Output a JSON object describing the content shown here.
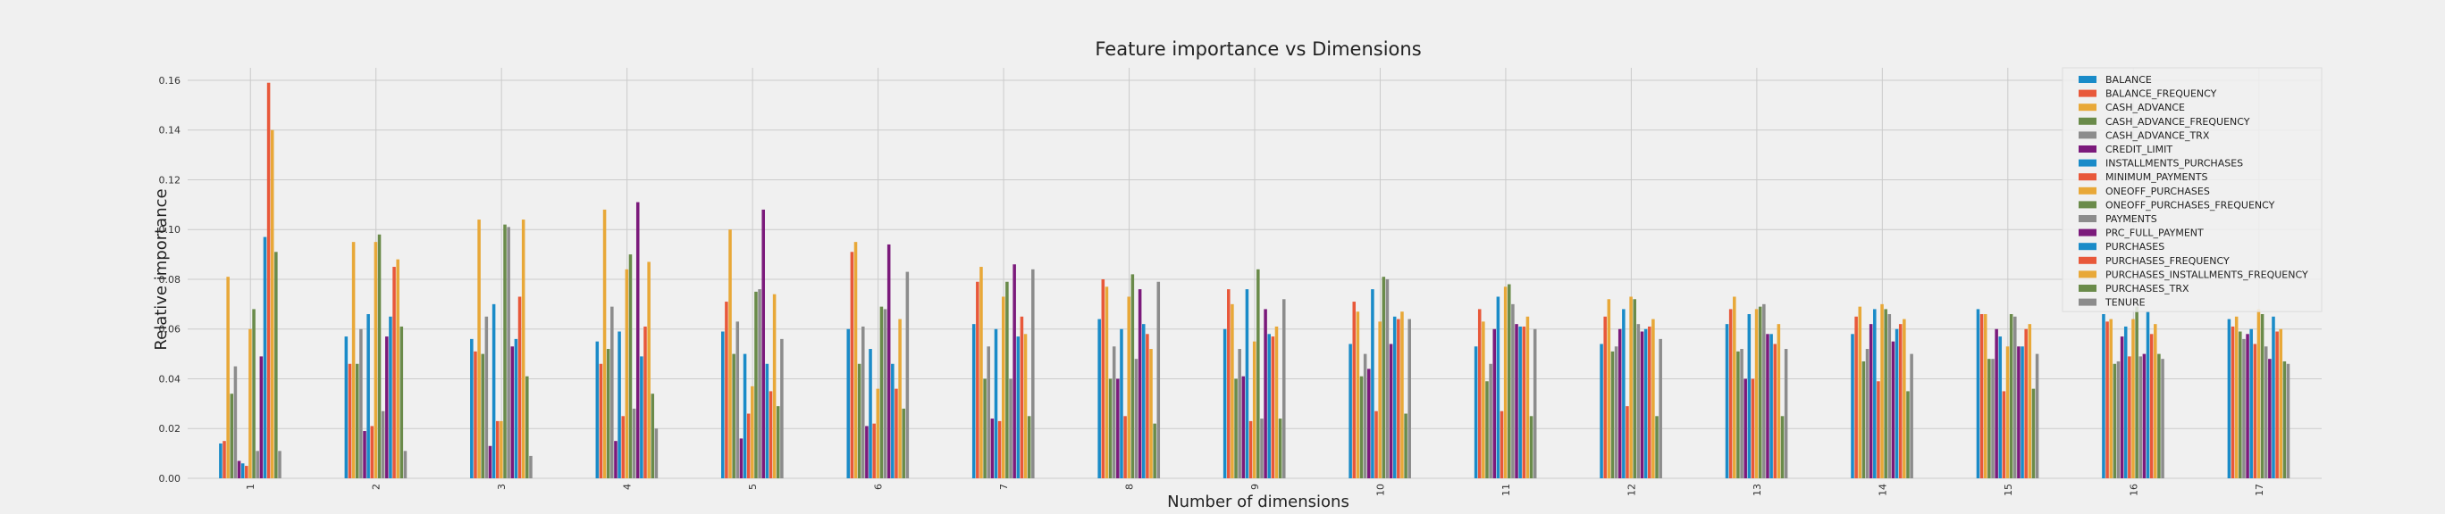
{
  "chart_data": {
    "type": "bar",
    "title": "Feature importance vs Dimensions",
    "xlabel": "Number of dimensions",
    "ylabel": "Relative importance",
    "ylim": [
      0,
      0.165
    ],
    "yticks": [
      "0.00",
      "0.02",
      "0.04",
      "0.06",
      "0.08",
      "0.10",
      "0.12",
      "0.14",
      "0.16"
    ],
    "grid": true,
    "legend_position": "top-right",
    "categories": [
      "1",
      "2",
      "3",
      "4",
      "5",
      "6",
      "7",
      "8",
      "9",
      "10",
      "11",
      "12",
      "13",
      "14",
      "15",
      "16",
      "17"
    ],
    "series": [
      {
        "name": "BALANCE",
        "color": "#1a8bc8",
        "values": [
          0.014,
          0.057,
          0.056,
          0.055,
          0.059,
          0.06,
          0.062,
          0.064,
          0.06,
          0.054,
          0.053,
          0.054,
          0.062,
          0.058,
          0.068,
          0.066,
          0.064
        ]
      },
      {
        "name": "BALANCE_FREQUENCY",
        "color": "#e8583a",
        "values": [
          0.015,
          0.046,
          0.051,
          0.046,
          0.071,
          0.091,
          0.079,
          0.08,
          0.076,
          0.071,
          0.068,
          0.065,
          0.068,
          0.065,
          0.066,
          0.063,
          0.061
        ]
      },
      {
        "name": "CASH_ADVANCE",
        "color": "#e8a838",
        "values": [
          0.081,
          0.095,
          0.104,
          0.108,
          0.1,
          0.095,
          0.085,
          0.077,
          0.07,
          0.067,
          0.063,
          0.072,
          0.073,
          0.069,
          0.066,
          0.064,
          0.065
        ]
      },
      {
        "name": "CASH_ADVANCE_FREQUENCY",
        "color": "#6a8b4a",
        "values": [
          0.034,
          0.046,
          0.05,
          0.052,
          0.05,
          0.046,
          0.04,
          0.04,
          0.04,
          0.041,
          0.039,
          0.051,
          0.051,
          0.047,
          0.048,
          0.046,
          0.059
        ]
      },
      {
        "name": "CASH_ADVANCE_TRX",
        "color": "#8c8c8c",
        "values": [
          0.045,
          0.06,
          0.065,
          0.069,
          0.063,
          0.061,
          0.053,
          0.053,
          0.052,
          0.05,
          0.046,
          0.053,
          0.052,
          0.052,
          0.048,
          0.047,
          0.056
        ]
      },
      {
        "name": "CREDIT_LIMIT",
        "color": "#7b1a7b",
        "values": [
          0.007,
          0.019,
          0.013,
          0.015,
          0.016,
          0.021,
          0.024,
          0.04,
          0.041,
          0.044,
          0.06,
          0.06,
          0.04,
          0.062,
          0.06,
          0.057,
          0.058
        ]
      },
      {
        "name": "INSTALLMENTS_PURCHASES",
        "color": "#1a8bc8",
        "values": [
          0.006,
          0.066,
          0.07,
          0.059,
          0.05,
          0.052,
          0.06,
          0.06,
          0.076,
          0.076,
          0.073,
          0.068,
          0.066,
          0.068,
          0.057,
          0.061,
          0.06
        ]
      },
      {
        "name": "MINIMUM_PAYMENTS",
        "color": "#e8583a",
        "values": [
          0.005,
          0.021,
          0.023,
          0.025,
          0.026,
          0.022,
          0.023,
          0.025,
          0.023,
          0.027,
          0.027,
          0.029,
          0.04,
          0.039,
          0.035,
          0.049,
          0.054
        ]
      },
      {
        "name": "ONEOFF_PURCHASES",
        "color": "#e8a838",
        "values": [
          0.06,
          0.095,
          0.023,
          0.084,
          0.037,
          0.036,
          0.073,
          0.073,
          0.055,
          0.063,
          0.077,
          0.073,
          0.068,
          0.07,
          0.053,
          0.064,
          0.068
        ]
      },
      {
        "name": "ONEOFF_PURCHASES_FREQUENCY",
        "color": "#6a8b4a",
        "values": [
          0.068,
          0.098,
          0.102,
          0.09,
          0.075,
          0.069,
          0.079,
          0.082,
          0.084,
          0.081,
          0.078,
          0.072,
          0.069,
          0.068,
          0.066,
          0.069,
          0.066
        ]
      },
      {
        "name": "PAYMENTS",
        "color": "#8c8c8c",
        "values": [
          0.011,
          0.027,
          0.101,
          0.028,
          0.076,
          0.068,
          0.04,
          0.048,
          0.024,
          0.08,
          0.07,
          0.062,
          0.07,
          0.066,
          0.065,
          0.049,
          0.053
        ]
      },
      {
        "name": "PRC_FULL_PAYMENT",
        "color": "#7b1a7b",
        "values": [
          0.049,
          0.057,
          0.053,
          0.111,
          0.108,
          0.094,
          0.086,
          0.076,
          0.068,
          0.054,
          0.062,
          0.059,
          0.058,
          0.055,
          0.053,
          0.05,
          0.048
        ]
      },
      {
        "name": "PURCHASES",
        "color": "#1a8bc8",
        "values": [
          0.097,
          0.065,
          0.056,
          0.049,
          0.046,
          0.046,
          0.057,
          0.062,
          0.058,
          0.065,
          0.061,
          0.06,
          0.058,
          0.06,
          0.053,
          0.067,
          0.065
        ]
      },
      {
        "name": "PURCHASES_FREQUENCY",
        "color": "#e8583a",
        "values": [
          0.159,
          0.085,
          0.073,
          0.061,
          0.035,
          0.036,
          0.065,
          0.058,
          0.057,
          0.064,
          0.061,
          0.061,
          0.054,
          0.062,
          0.06,
          0.058,
          0.059
        ]
      },
      {
        "name": "PURCHASES_INSTALLMENTS_FREQUENCY",
        "color": "#e8a838",
        "values": [
          0.14,
          0.088,
          0.104,
          0.087,
          0.074,
          0.064,
          0.058,
          0.052,
          0.061,
          0.067,
          0.065,
          0.064,
          0.062,
          0.064,
          0.062,
          0.062,
          0.06
        ]
      },
      {
        "name": "PURCHASES_TRX",
        "color": "#6a8b4a",
        "values": [
          0.091,
          0.061,
          0.041,
          0.034,
          0.029,
          0.028,
          0.025,
          0.022,
          0.024,
          0.026,
          0.025,
          0.025,
          0.025,
          0.035,
          0.036,
          0.05,
          0.047
        ]
      },
      {
        "name": "TENURE",
        "color": "#8c8c8c",
        "values": [
          0.011,
          0.011,
          0.009,
          0.02,
          0.056,
          0.083,
          0.084,
          0.079,
          0.072,
          0.064,
          0.06,
          0.056,
          0.052,
          0.05,
          0.05,
          0.048,
          0.046
        ]
      }
    ]
  }
}
